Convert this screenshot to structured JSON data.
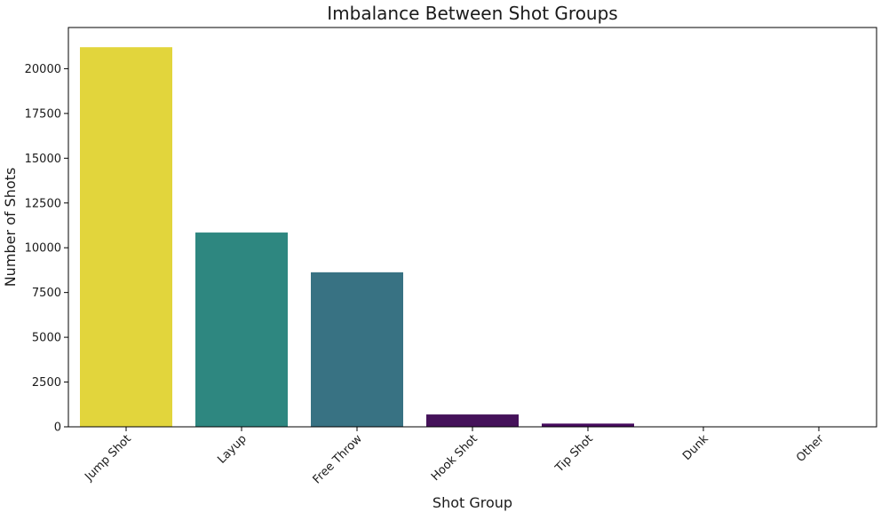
{
  "chart_data": {
    "type": "bar",
    "title": "Imbalance Between Shot Groups",
    "xlabel": "Shot Group",
    "ylabel": "Number of Shots",
    "categories": [
      "Jump Shot",
      "Layup",
      "Free Throw",
      "Hook Shot",
      "Tip Shot",
      "Dunk",
      "Other"
    ],
    "values": [
      21200,
      10850,
      8630,
      690,
      180,
      15,
      5
    ],
    "colors": [
      "#e2d53c",
      "#2e8780",
      "#387283",
      "#45125a",
      "#460b5e",
      "#440154",
      "#440154"
    ],
    "ylim": [
      0,
      22300
    ],
    "yticks": [
      0,
      2500,
      5000,
      7500,
      10000,
      12500,
      15000,
      17500,
      20000
    ],
    "ytick_labels": [
      "0",
      "2500",
      "5000",
      "7500",
      "10000",
      "12500",
      "15000",
      "17500",
      "20000"
    ],
    "grid": false,
    "legend": "none"
  }
}
